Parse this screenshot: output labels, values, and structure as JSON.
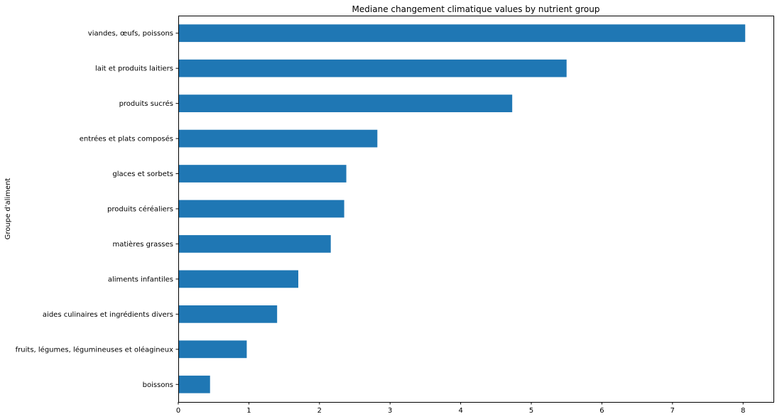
{
  "chart_data": {
    "type": "bar",
    "orientation": "horizontal",
    "title": "Mediane changement climatique values by nutrient group",
    "xlabel": "",
    "ylabel": "Groupe d'aliment",
    "categories": [
      "boissons",
      "fruits, légumes, légumineuses et oléagineux",
      "aides culinaires et ingrédients divers",
      "aliments infantiles",
      "matières grasses",
      "produits céréaliers",
      "glaces et sorbets",
      "entrées et plats composés",
      "produits sucrés",
      "lait et produits laitiers",
      "viandes, œufs, poissons"
    ],
    "values": [
      0.45,
      0.97,
      1.4,
      1.7,
      2.16,
      2.35,
      2.38,
      2.82,
      4.73,
      5.5,
      8.03
    ],
    "xlim": [
      0,
      8.43
    ],
    "xticks": [
      "0",
      "1",
      "2",
      "3",
      "4",
      "5",
      "6",
      "7",
      "8"
    ],
    "bar_color": "#1f77b4",
    "grid": false,
    "legend": "none"
  }
}
